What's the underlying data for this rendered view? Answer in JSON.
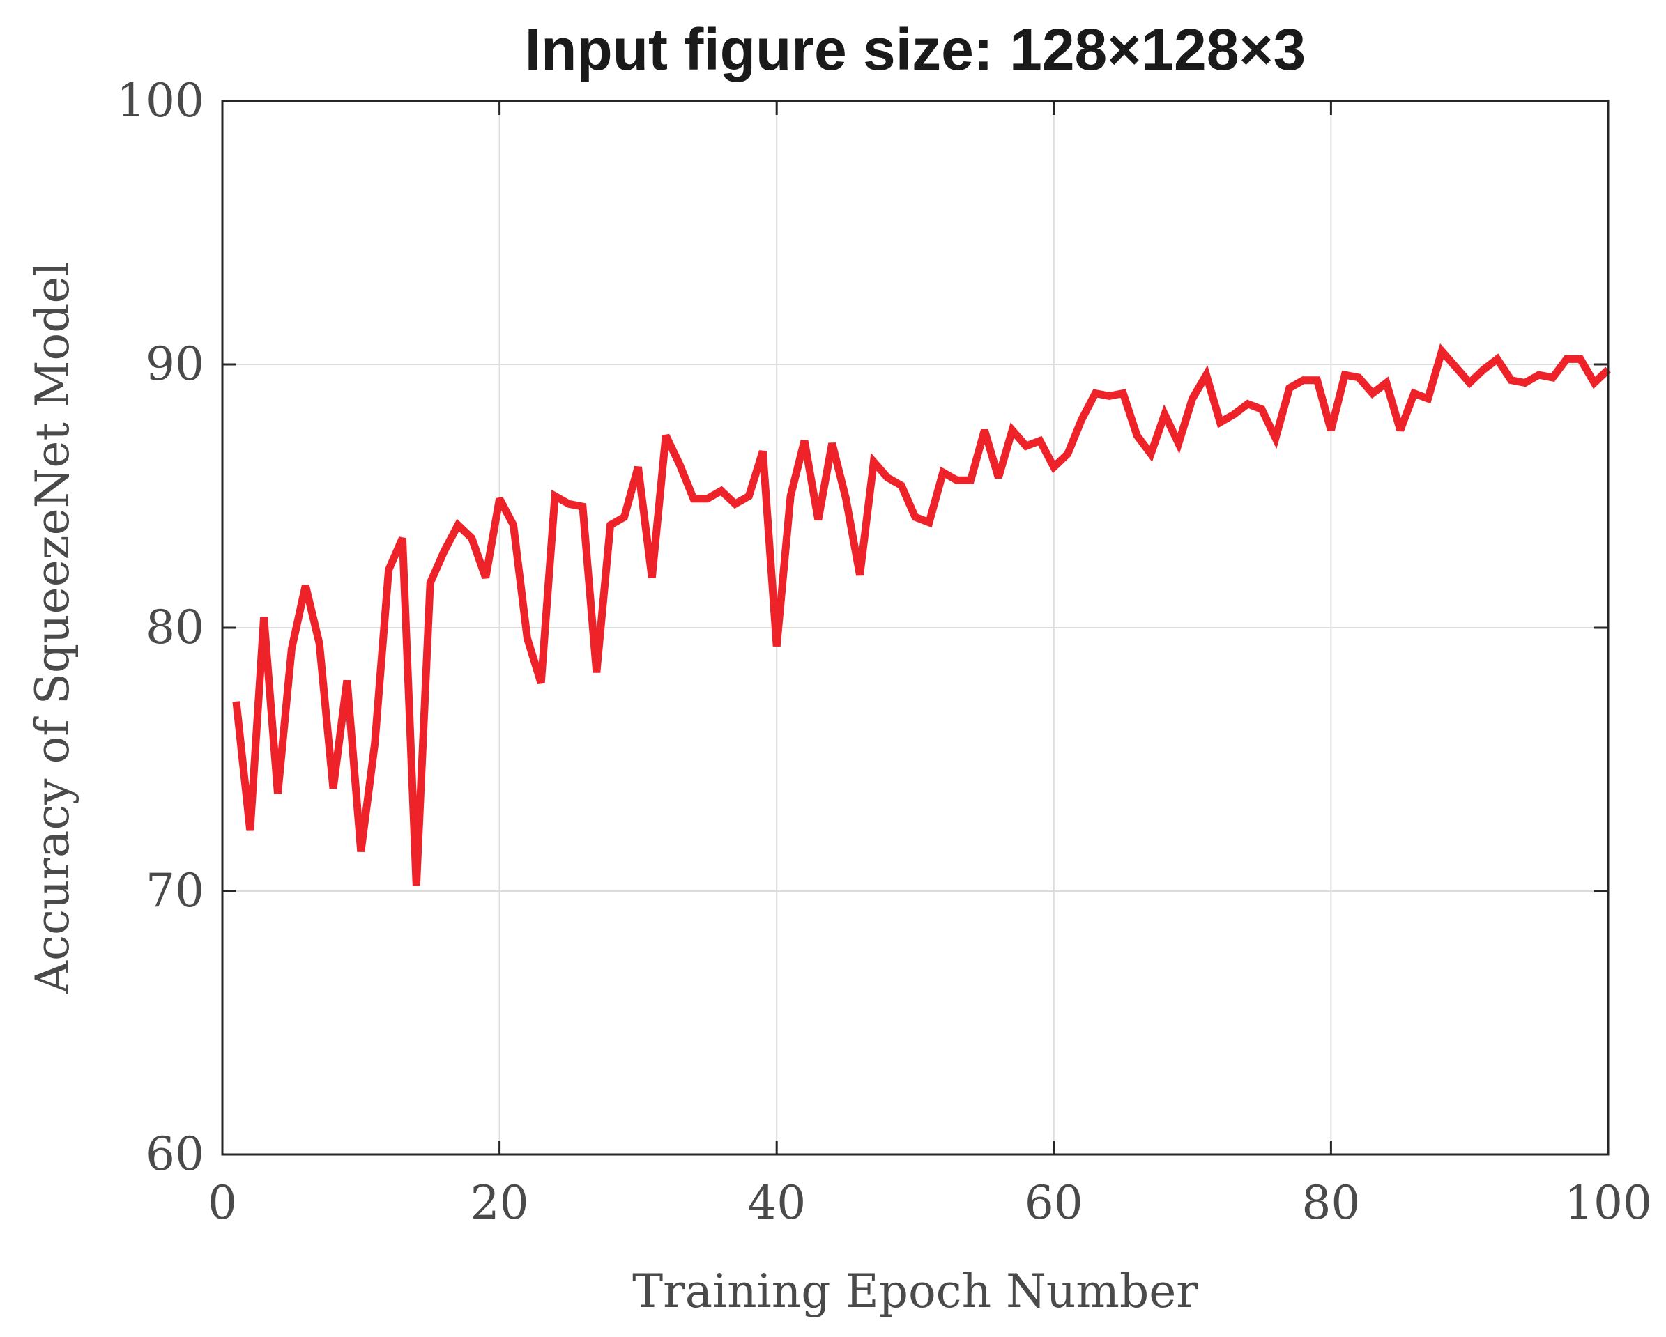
{
  "chart_data": {
    "type": "line",
    "title": "Input figure size: 128×128×3",
    "xlabel": "Training Epoch Number",
    "ylabel": "Accuracy of SqueezeNet Model",
    "xlim": [
      0,
      100
    ],
    "ylim": [
      60,
      100
    ],
    "xticks": [
      0,
      20,
      40,
      60,
      80,
      100
    ],
    "yticks": [
      60,
      70,
      80,
      90,
      100
    ],
    "xtick_labels": [
      "0",
      "20",
      "40",
      "60",
      "80",
      "100"
    ],
    "ytick_labels": [
      "60",
      "70",
      "80",
      "90",
      "100"
    ],
    "grid": true,
    "colors": {
      "line": "#ee2229",
      "axes": "#262626",
      "grid": "#dcdcdc",
      "text": "#4a4a4a"
    },
    "series": [
      {
        "x": [
          1,
          2,
          3,
          4,
          5,
          6,
          7,
          8,
          9,
          10,
          11,
          12,
          13,
          14,
          15,
          16,
          17,
          18,
          19,
          20,
          21,
          22,
          23,
          24,
          25,
          26,
          27,
          28,
          29,
          30,
          31,
          32,
          33,
          34,
          35,
          36,
          37,
          38,
          39,
          40,
          41,
          42,
          43,
          44,
          45,
          46,
          47,
          48,
          49,
          50,
          51,
          52,
          53,
          54,
          55,
          56,
          57,
          58,
          59,
          60,
          61,
          62,
          63,
          64,
          65,
          66,
          67,
          68,
          69,
          70,
          71,
          72,
          73,
          74,
          75,
          76,
          77,
          78,
          79,
          80,
          81,
          82,
          83,
          84,
          85,
          86,
          87,
          88,
          89,
          90,
          91,
          92,
          93,
          94,
          95,
          96,
          97,
          98,
          99,
          100
        ],
        "values": [
          77.2,
          72.3,
          80.4,
          73.7,
          79.2,
          81.6,
          79.4,
          73.9,
          78.0,
          71.5,
          75.6,
          82.2,
          83.4,
          70.2,
          81.7,
          82.9,
          83.9,
          83.4,
          81.9,
          84.9,
          83.9,
          79.6,
          77.9,
          85.0,
          84.7,
          84.6,
          78.3,
          83.9,
          84.2,
          86.1,
          81.9,
          87.3,
          86.2,
          84.9,
          84.9,
          85.2,
          84.7,
          85.0,
          86.7,
          79.3,
          85.0,
          87.1,
          84.1,
          87.0,
          84.9,
          82.0,
          86.3,
          85.7,
          85.4,
          84.2,
          84.0,
          85.9,
          85.6,
          85.6,
          87.5,
          85.7,
          87.5,
          86.9,
          87.1,
          86.1,
          86.6,
          87.9,
          88.9,
          88.8,
          88.9,
          87.3,
          86.6,
          88.1,
          87.0,
          88.7,
          89.6,
          87.8,
          88.1,
          88.5,
          88.3,
          87.2,
          89.1,
          89.4,
          89.4,
          87.5,
          89.6,
          89.5,
          88.9,
          89.3,
          87.5,
          88.9,
          88.7,
          90.5,
          89.9,
          89.3,
          89.8,
          90.2,
          89.4,
          89.3,
          89.6,
          89.5,
          90.2,
          90.2,
          89.3,
          89.8
        ]
      }
    ]
  }
}
